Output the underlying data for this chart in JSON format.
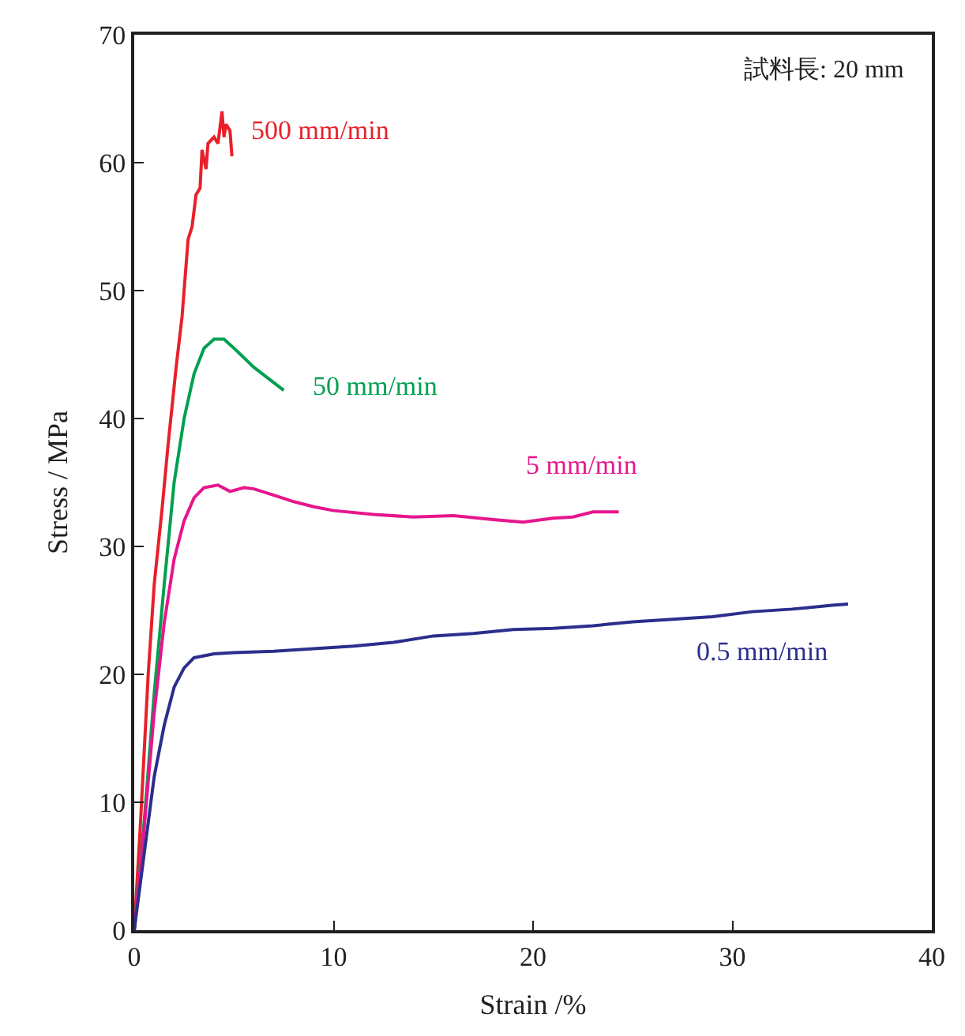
{
  "chart_data": {
    "type": "line",
    "xlabel": "Strain /%",
    "ylabel": "Stress / MPa",
    "xlim": [
      0,
      40
    ],
    "xticks": [
      0,
      10,
      20,
      30,
      40
    ],
    "ylim": [
      0,
      70
    ],
    "yticks": [
      0,
      10,
      20,
      30,
      40,
      50,
      60,
      70
    ],
    "legend": false,
    "marker": "none",
    "line_style": "solid",
    "annotations": [
      "試料長: 20 mm"
    ],
    "series": [
      {
        "name": "500 mm/min",
        "color": "#e8202a",
        "x": [
          0,
          0.3,
          0.7,
          1.0,
          1.4,
          1.7,
          1.9,
          2.1,
          2.4,
          2.7,
          2.9,
          3.1,
          3.3,
          3.4,
          3.6,
          3.7,
          4.0,
          4.2,
          4.4,
          4.5,
          4.6,
          4.8,
          4.9
        ],
        "values": [
          0,
          8,
          20,
          27,
          33,
          38,
          41,
          44,
          48,
          54,
          55,
          57.5,
          58,
          61,
          59.5,
          61.5,
          62,
          61.5,
          64,
          62,
          63,
          62.5,
          60.5
        ]
      },
      {
        "name": "50 mm/min",
        "color": "#00a050",
        "x": [
          0,
          0.5,
          1,
          1.5,
          2,
          2.5,
          3,
          3.5,
          4,
          4.5,
          5,
          6,
          7,
          7.5
        ],
        "values": [
          0,
          8.5,
          18.5,
          27,
          35,
          40,
          43.5,
          45.5,
          46.2,
          46.2,
          45.5,
          44,
          42.8,
          42.2
        ]
      },
      {
        "name": "5 mm/min",
        "color": "#e6168c",
        "x": [
          0,
          0.5,
          1,
          1.5,
          2,
          2.5,
          3,
          3.5,
          4.2,
          4.8,
          5.5,
          6,
          7,
          8,
          9,
          10,
          12,
          14,
          16,
          18,
          19.5,
          21,
          22,
          23,
          24.3
        ],
        "values": [
          0,
          8,
          17,
          24,
          29,
          32,
          33.8,
          34.6,
          34.8,
          34.3,
          34.6,
          34.5,
          34,
          33.5,
          33.1,
          32.8,
          32.5,
          32.3,
          32.4,
          32.1,
          31.9,
          32.2,
          32.3,
          32.7,
          32.7
        ]
      },
      {
        "name": "0.5 mm/min",
        "color": "#2b2e8c",
        "x": [
          0,
          0.5,
          1,
          1.5,
          2,
          2.5,
          3,
          4,
          5,
          7,
          9,
          11,
          13,
          15,
          17,
          19,
          21,
          23,
          25,
          27,
          29,
          31,
          33,
          35,
          35.8
        ],
        "values": [
          0,
          6,
          12,
          16,
          19,
          20.5,
          21.3,
          21.6,
          21.7,
          21.8,
          22,
          22.2,
          22.5,
          23,
          23.2,
          23.5,
          23.6,
          23.8,
          24.1,
          24.3,
          24.5,
          24.9,
          25.1,
          25.4,
          25.5
        ]
      }
    ]
  }
}
